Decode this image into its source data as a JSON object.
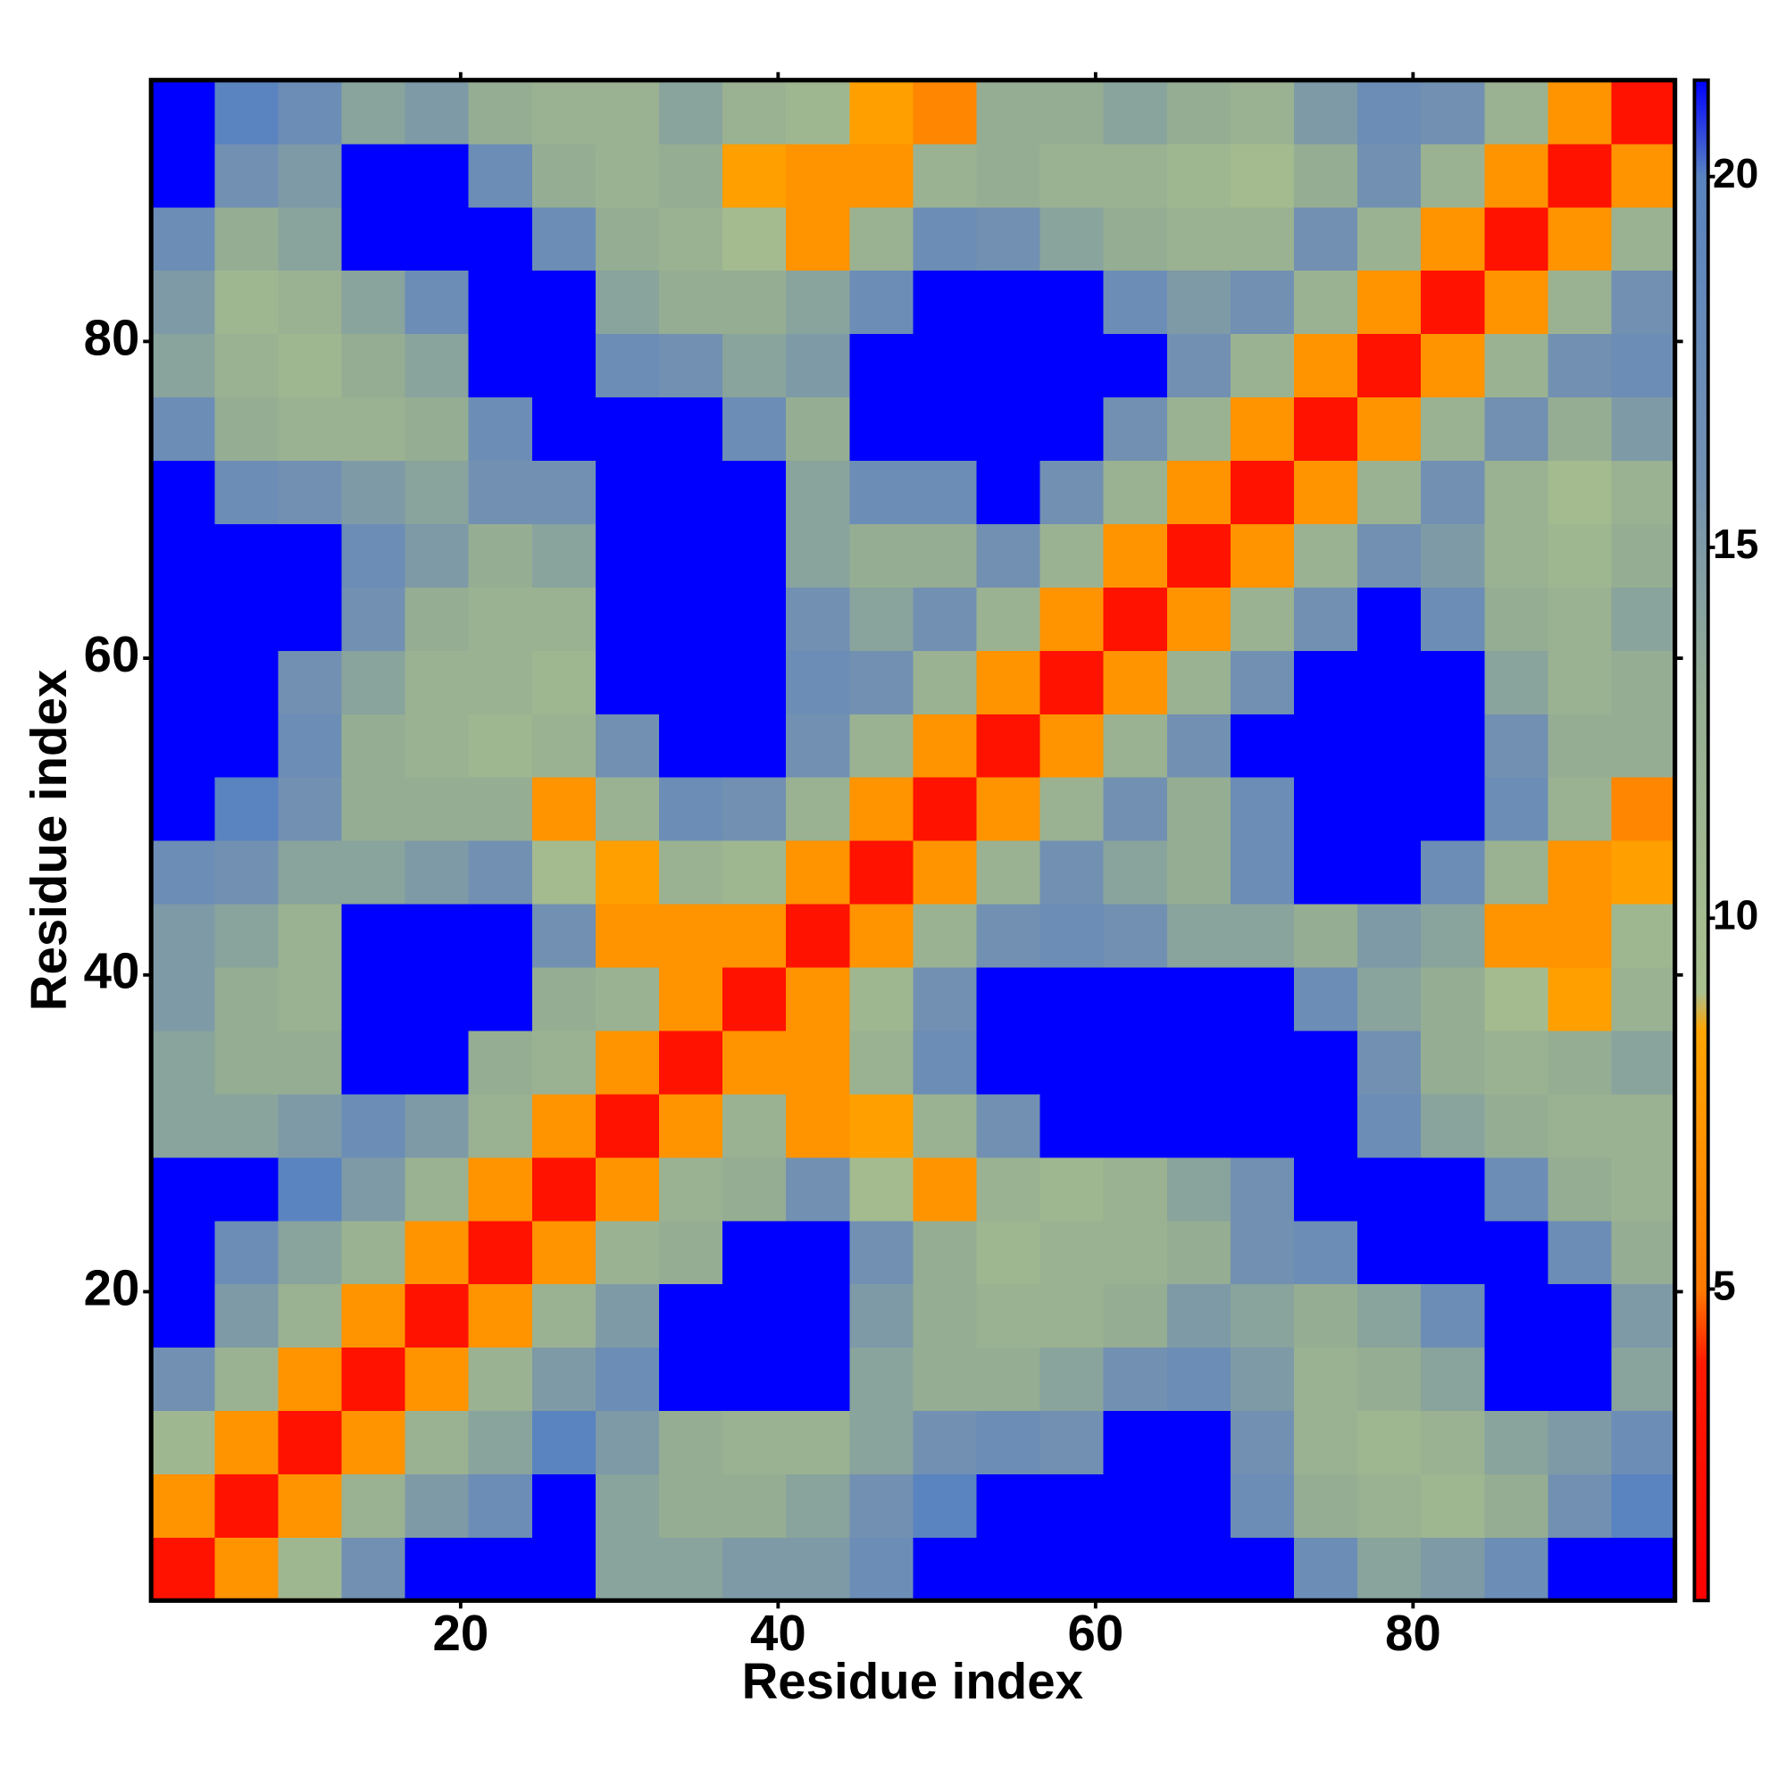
{
  "chart_data": {
    "type": "heatmap",
    "xlabel": "Residue index",
    "ylabel": "Residue index",
    "xbins": [
      0.5,
      4.5,
      8.5,
      12.5,
      16.5,
      20.5,
      24.5,
      28.5,
      32.5,
      36.5,
      40.5,
      44.5,
      48.5,
      52.5,
      56.5,
      60.5,
      64.5,
      68.5,
      72.5,
      76.5,
      80.5,
      84.5,
      88.5,
      92.5,
      96.5
    ],
    "ybins": [
      0.5,
      4.5,
      8.5,
      12.5,
      16.5,
      20.5,
      24.5,
      28.5,
      32.5,
      36.5,
      40.5,
      44.5,
      48.5,
      52.5,
      56.5,
      60.5,
      64.5,
      68.5,
      72.5,
      76.5,
      80.5,
      84.5,
      88.5,
      92.5,
      96.5
    ],
    "xlim": [
      0.5,
      96.5
    ],
    "ylim": [
      0.5,
      96.5
    ],
    "xticks": [
      20,
      40,
      60,
      80
    ],
    "yticks": [
      20,
      40,
      60,
      80
    ],
    "z": [
      [
        3,
        7,
        11,
        16,
        25,
        25,
        25,
        14,
        14,
        15,
        15,
        17,
        25,
        25,
        25,
        25,
        25,
        25,
        17,
        14,
        15,
        17,
        25,
        25
      ],
      [
        7,
        3,
        7,
        12,
        15,
        17,
        25,
        14,
        13,
        13,
        14,
        16,
        20,
        25,
        25,
        25,
        25,
        17,
        13,
        12,
        11,
        13,
        16,
        20
      ],
      [
        11,
        7,
        3,
        7,
        12,
        14,
        20,
        15,
        13,
        12,
        12,
        14,
        16,
        17,
        16,
        25,
        25,
        16,
        12,
        11,
        12,
        14,
        15,
        17
      ],
      [
        16,
        12,
        7,
        3,
        7,
        12,
        15,
        17,
        25,
        25,
        25,
        14,
        13,
        13,
        14,
        16,
        17,
        15,
        12,
        13,
        14,
        25,
        25,
        14
      ],
      [
        25,
        15,
        12,
        7,
        3,
        7,
        12,
        15,
        25,
        25,
        25,
        15,
        13,
        12,
        12,
        13,
        15,
        14,
        13,
        14,
        17,
        25,
        25,
        15
      ],
      [
        25,
        17,
        14,
        12,
        7,
        3,
        7,
        12,
        13,
        25,
        25,
        16,
        13,
        11,
        12,
        12,
        13,
        16,
        17,
        25,
        25,
        25,
        17,
        13
      ],
      [
        25,
        25,
        20,
        15,
        12,
        7,
        3,
        7,
        12,
        13,
        16,
        10,
        7,
        12,
        11,
        12,
        14,
        16,
        25,
        25,
        25,
        17,
        13,
        12
      ],
      [
        14,
        14,
        15,
        17,
        15,
        12,
        7,
        3,
        7,
        12,
        7,
        8,
        12,
        16,
        25,
        25,
        25,
        25,
        25,
        17,
        14,
        13,
        12,
        12
      ],
      [
        14,
        13,
        13,
        25,
        25,
        13,
        12,
        7,
        3,
        7,
        7,
        12,
        17,
        25,
        25,
        25,
        25,
        25,
        25,
        16,
        13,
        12,
        13,
        14
      ],
      [
        15,
        13,
        12,
        25,
        25,
        25,
        13,
        12,
        7,
        3,
        7,
        11,
        16,
        25,
        25,
        25,
        25,
        25,
        17,
        14,
        13,
        10,
        8,
        12
      ],
      [
        15,
        14,
        12,
        25,
        25,
        25,
        16,
        7,
        7,
        7,
        3,
        7,
        12,
        16,
        17,
        16,
        14,
        14,
        13,
        15,
        14,
        7,
        7,
        11
      ],
      [
        17,
        16,
        14,
        14,
        15,
        16,
        10,
        8,
        12,
        11,
        7,
        3,
        7,
        12,
        16,
        14,
        13,
        17,
        25,
        25,
        17,
        12,
        7,
        8
      ],
      [
        25,
        20,
        16,
        13,
        13,
        13,
        7,
        12,
        17,
        16,
        12,
        7,
        3,
        7,
        12,
        16,
        13,
        17,
        25,
        25,
        25,
        17,
        12,
        6
      ],
      [
        25,
        25,
        17,
        13,
        12,
        11,
        12,
        16,
        25,
        25,
        16,
        12,
        7,
        3,
        7,
        12,
        16,
        25,
        25,
        25,
        25,
        16,
        13,
        13
      ],
      [
        25,
        25,
        16,
        14,
        12,
        12,
        11,
        25,
        25,
        25,
        17,
        16,
        12,
        7,
        3,
        7,
        12,
        16,
        25,
        25,
        25,
        14,
        12,
        13
      ],
      [
        25,
        25,
        25,
        16,
        13,
        12,
        12,
        25,
        25,
        25,
        16,
        14,
        16,
        12,
        7,
        3,
        7,
        12,
        16,
        25,
        17,
        13,
        12,
        14
      ],
      [
        25,
        25,
        25,
        17,
        15,
        13,
        14,
        25,
        25,
        25,
        14,
        13,
        13,
        16,
        12,
        7,
        3,
        7,
        12,
        16,
        15,
        12,
        11,
        13
      ],
      [
        25,
        17,
        16,
        15,
        14,
        16,
        16,
        25,
        25,
        25,
        14,
        17,
        17,
        25,
        16,
        12,
        7,
        3,
        7,
        12,
        16,
        12,
        10,
        12
      ],
      [
        17,
        13,
        12,
        12,
        13,
        17,
        25,
        25,
        25,
        17,
        13,
        25,
        25,
        25,
        25,
        16,
        12,
        7,
        3,
        7,
        12,
        16,
        13,
        15
      ],
      [
        14,
        12,
        11,
        13,
        14,
        25,
        25,
        17,
        16,
        14,
        15,
        25,
        25,
        25,
        25,
        25,
        16,
        12,
        7,
        3,
        7,
        12,
        16,
        17
      ],
      [
        15,
        11,
        12,
        14,
        17,
        25,
        25,
        14,
        13,
        13,
        14,
        17,
        25,
        25,
        25,
        17,
        15,
        16,
        12,
        7,
        3,
        7,
        12,
        16
      ],
      [
        17,
        13,
        14,
        25,
        25,
        25,
        17,
        13,
        12,
        10,
        7,
        12,
        17,
        16,
        14,
        13,
        12,
        12,
        16,
        12,
        7,
        3,
        7,
        12
      ],
      [
        25,
        16,
        15,
        25,
        25,
        17,
        13,
        12,
        13,
        8,
        7,
        7,
        12,
        13,
        12,
        12,
        11,
        10,
        13,
        16,
        12,
        7,
        3,
        7
      ],
      [
        25,
        20,
        17,
        14,
        15,
        13,
        12,
        12,
        14,
        12,
        11,
        8,
        6,
        13,
        13,
        14,
        13,
        12,
        15,
        17,
        16,
        12,
        7,
        3
      ]
    ],
    "zlim": [
      0.8,
      21.3
    ],
    "zticks": [
      5,
      10,
      15,
      20
    ],
    "color_stops": [
      {
        "value": 0.8,
        "color": "#ff0000"
      },
      {
        "value": 4,
        "color": "#ff1a00"
      },
      {
        "value": 5,
        "color": "#ff7a00"
      },
      {
        "value": 8.5,
        "color": "#ffa500"
      },
      {
        "value": 9,
        "color": "#a9c08f"
      },
      {
        "value": 13,
        "color": "#95ad92"
      },
      {
        "value": 16,
        "color": "#7290b2"
      },
      {
        "value": 20,
        "color": "#5a84c0"
      },
      {
        "value": 21.3,
        "color": "#0000ff"
      }
    ],
    "over_color": "#0000ff"
  }
}
